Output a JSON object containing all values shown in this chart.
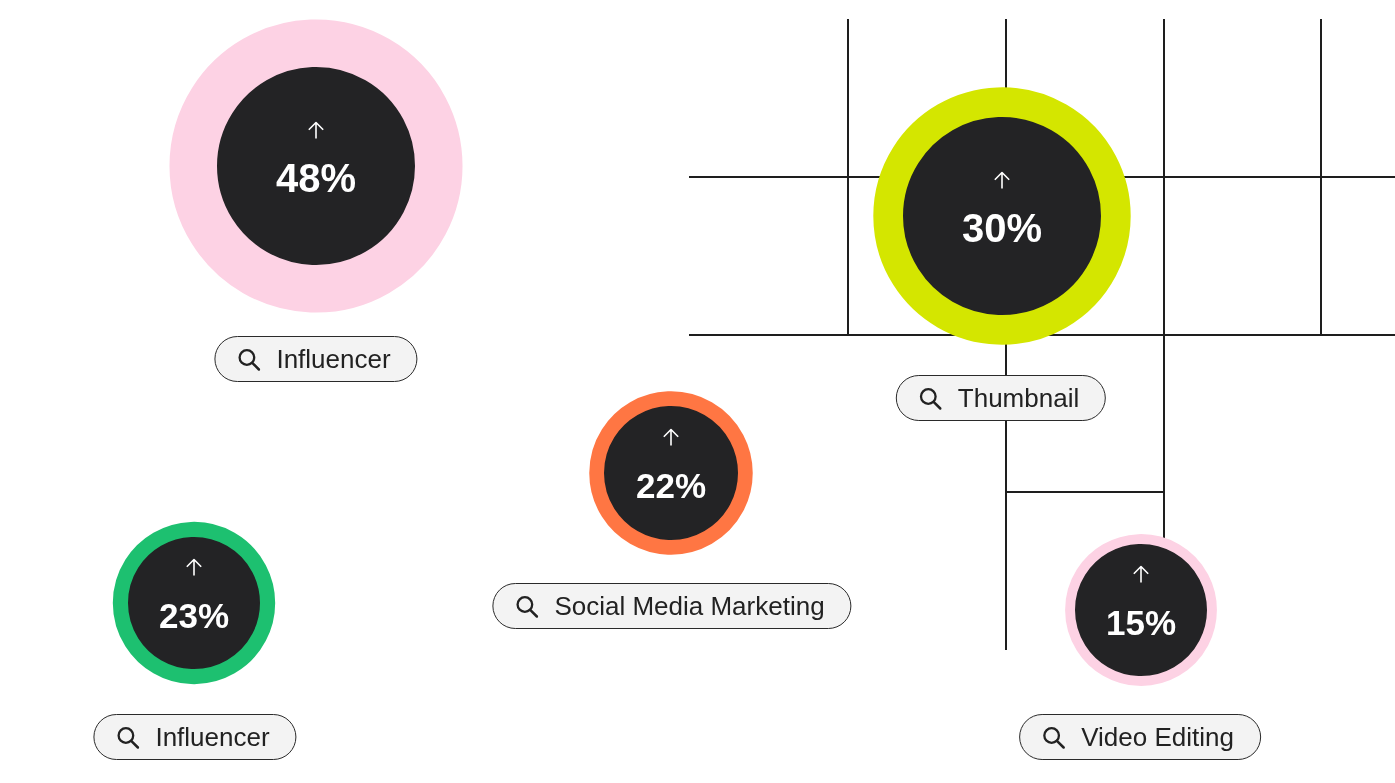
{
  "chart_data": {
    "type": "other",
    "categories": [
      "Influencer",
      "Thumbnail",
      "Social Media Marketing",
      "Influencer",
      "Video Editing"
    ],
    "values": [
      48,
      30,
      22,
      23,
      15
    ],
    "value_labels": [
      "48%",
      "30%",
      "22%",
      "23%",
      "15%"
    ],
    "colors": [
      "#fdd2e4",
      "#d4e600",
      "#ff7643",
      "#1dc070",
      "#fdd2e4"
    ]
  }
}
